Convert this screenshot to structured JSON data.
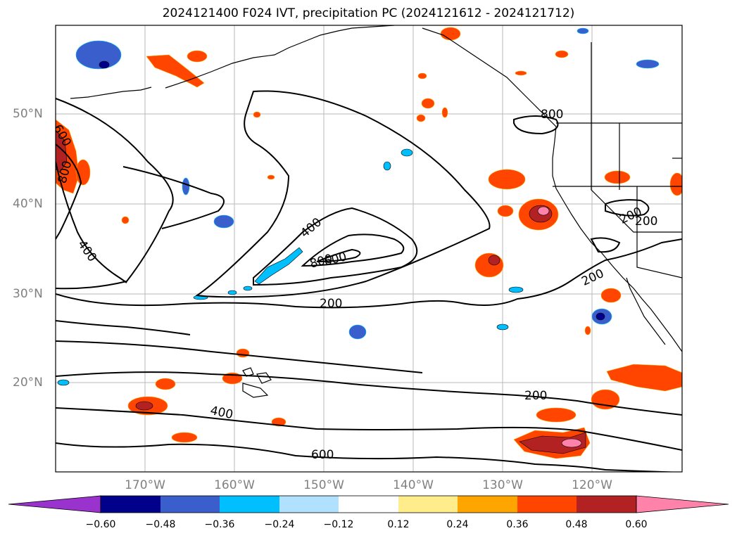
{
  "title": "2024121400 F024 IVT, precipitation PC (2024121612 - 2024121712)",
  "latitude_labels": [
    "50°N",
    "40°N",
    "30°N",
    "20°N"
  ],
  "longitude_labels": [
    "170°W",
    "160°W",
    "150°W",
    "140°W",
    "130°W",
    "120°W"
  ],
  "colorbar": {
    "tick_labels": [
      "−0.60",
      "−0.48",
      "−0.36",
      "−0.24",
      "−0.12",
      "0.12",
      "0.24",
      "0.36",
      "0.48",
      "0.60"
    ],
    "colors": [
      "#9a32cd",
      "#00008b",
      "#3a5fcd",
      "#00bfff",
      "#b0e2ff",
      "#ffffff",
      "#ffec8b",
      "#ffa500",
      "#ff4500",
      "#b22222",
      "#ff82ab"
    ]
  },
  "ivt_contour_labels": [
    "200",
    "200",
    "200",
    "200",
    "200",
    "400",
    "400",
    "400",
    "600",
    "600",
    "800",
    "800",
    "600",
    "800"
  ],
  "colors": {
    "contour": "#000000",
    "coastline": "#000000",
    "grid": "#a9a9a9",
    "axis_label": "#808080"
  }
}
